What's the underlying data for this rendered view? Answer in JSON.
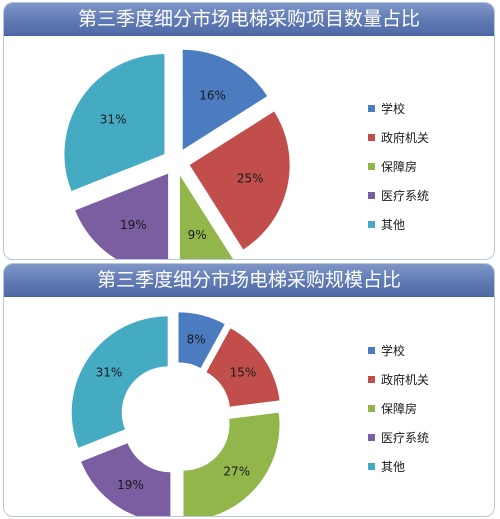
{
  "chart_data": [
    {
      "type": "pie",
      "title": "第三季度细分市场电梯采购项目数量占比",
      "categories": [
        "学校",
        "政府机关",
        "保障房",
        "医疗系统",
        "其他"
      ],
      "values": [
        16,
        25,
        9,
        19,
        31
      ],
      "value_labels": [
        "16%",
        "25%",
        "9%",
        "19%",
        "31%"
      ],
      "colors": [
        "#4a7cbf",
        "#c24e4b",
        "#93b64b",
        "#7b5da2",
        "#45abc2"
      ],
      "legend": "right",
      "exploded": true
    },
    {
      "type": "pie",
      "subtype": "donut",
      "title": "第三季度细分市场电梯采购规模占比",
      "categories": [
        "学校",
        "政府机关",
        "保障房",
        "医疗系统",
        "其他"
      ],
      "values": [
        8,
        15,
        27,
        19,
        31
      ],
      "value_labels": [
        "8%",
        "15%",
        "27%",
        "19%",
        "31%"
      ],
      "colors": [
        "#4a7cbf",
        "#c24e4b",
        "#93b64b",
        "#7b5da2",
        "#45abc2"
      ],
      "legend": "right",
      "exploded": true
    }
  ]
}
